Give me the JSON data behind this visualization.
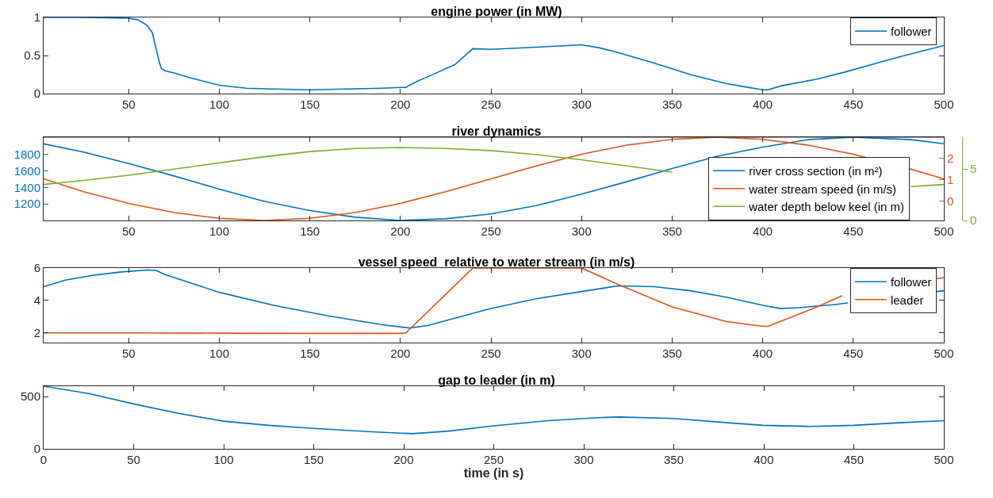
{
  "chart_data": [
    {
      "type": "line",
      "title": "engine power (in MW)",
      "xlim": [
        3,
        500
      ],
      "xticks": [
        50,
        100,
        150,
        200,
        250,
        300,
        350,
        400,
        450,
        500
      ],
      "ylim": [
        0,
        1
      ],
      "yticks": [
        0,
        0.5,
        1
      ],
      "grid": false,
      "legend": "top right",
      "line_style": "solid",
      "x": [
        3,
        25,
        50,
        55,
        60,
        63,
        65,
        67,
        68,
        70,
        75,
        85,
        100,
        115,
        130,
        150,
        170,
        190,
        200,
        203,
        205,
        210,
        215,
        230,
        240,
        250,
        275,
        300,
        310,
        320,
        340,
        360,
        380,
        390,
        400,
        403,
        410,
        430,
        445,
        460,
        475,
        490,
        500
      ],
      "series": [
        {
          "name": "follower",
          "color": "#0072bd",
          "values": [
            1,
            1,
            0.99,
            0.97,
            0.9,
            0.8,
            0.6,
            0.4,
            0.33,
            0.3,
            0.27,
            0.2,
            0.11,
            0.07,
            0.06,
            0.05,
            0.06,
            0.07,
            0.08,
            0.08,
            0.11,
            0.17,
            0.22,
            0.38,
            0.59,
            0.58,
            0.61,
            0.64,
            0.6,
            0.54,
            0.4,
            0.25,
            0.13,
            0.09,
            0.05,
            0.05,
            0.1,
            0.19,
            0.28,
            0.38,
            0.48,
            0.57,
            0.63
          ]
        }
      ]
    },
    {
      "type": "line",
      "title": "river dynamics",
      "xlim": [
        3,
        500
      ],
      "xticks": [
        50,
        100,
        150,
        200,
        250,
        300,
        350,
        400,
        450,
        500
      ],
      "ylim": [
        1000,
        2010
      ],
      "yticks": [
        1200,
        1400,
        1600,
        1800
      ],
      "y2lim": [
        -0.9,
        3
      ],
      "y2ticks": [
        0,
        1,
        2
      ],
      "y3lim": [
        0,
        8.1
      ],
      "y3ticks": [
        0,
        5
      ],
      "grid": false,
      "legend": "bottom right",
      "line_style": "solid",
      "x": [
        3,
        25,
        50,
        75,
        100,
        125,
        150,
        175,
        200,
        225,
        250,
        275,
        300,
        325,
        350,
        375,
        400,
        425,
        450,
        482,
        500
      ],
      "series": [
        {
          "name": "river cross section (in m²)",
          "color": "#0072bd",
          "axis": "y",
          "values": [
            1930,
            1830,
            1690,
            1540,
            1380,
            1230,
            1120,
            1040,
            1000,
            1020,
            1080,
            1180,
            1320,
            1470,
            1630,
            1780,
            1890,
            1980,
            2010,
            1980,
            1930
          ]
        },
        {
          "name": "water stream speed (in m/s)",
          "color": "#d95319",
          "axis": "y2",
          "values": [
            1.05,
            0.45,
            -0.1,
            -0.53,
            -0.8,
            -0.9,
            -0.8,
            -0.53,
            -0.1,
            0.45,
            1.05,
            1.65,
            2.2,
            2.63,
            2.9,
            3,
            2.9,
            2.63,
            2.2,
            1.5,
            1.05
          ]
        },
        {
          "name": "water depth below keel (in m)",
          "color": "#77ac30",
          "axis": "y3",
          "values": [
            3.5,
            3.9,
            4.4,
            5,
            5.6,
            6.2,
            6.7,
            7,
            7.1,
            7,
            6.8,
            6.4,
            5.9,
            5.3,
            4.7,
            null,
            null,
            null,
            null,
            3.3,
            3.5
          ]
        }
      ]
    },
    {
      "type": "line",
      "title": "vessel speed  relative to water stream (in m/s)",
      "xlim": [
        3,
        500
      ],
      "xticks": [
        50,
        100,
        150,
        200,
        250,
        300,
        350,
        400,
        450,
        500
      ],
      "ylim": [
        1.4,
        6
      ],
      "yticks": [
        2,
        4,
        6
      ],
      "grid": false,
      "legend": "top right",
      "line_style": "solid",
      "series": [
        {
          "name": "follower",
          "color": "#0072bd",
          "x": [
            3,
            15,
            30,
            45,
            60,
            65,
            70,
            100,
            130,
            160,
            190,
            205,
            215,
            230,
            250,
            275,
            300,
            320,
            340,
            360,
            380,
            400,
            410,
            420,
            440,
            447,
            480,
            496,
            500
          ],
          "values": [
            4.85,
            5.25,
            5.55,
            5.75,
            5.88,
            5.85,
            5.6,
            4.5,
            3.7,
            3.05,
            2.5,
            2.3,
            2.45,
            2.9,
            3.5,
            4.1,
            4.55,
            4.9,
            4.85,
            4.6,
            4.2,
            3.7,
            3.5,
            3.55,
            3.75,
            3.85,
            null,
            4.55,
            4.6
          ]
        },
        {
          "name": "leader",
          "color": "#d95319",
          "x": [
            3,
            50,
            100,
            150,
            200,
            203,
            240,
            300,
            320,
            350,
            380,
            400,
            403,
            430,
            444,
            470,
            496,
            500
          ],
          "values": [
            2.0,
            2.0,
            1.98,
            1.97,
            1.97,
            2.0,
            6,
            6,
            5.0,
            3.6,
            2.7,
            2.4,
            2.4,
            3.6,
            4.3,
            null,
            5.35,
            5.4
          ]
        }
      ]
    },
    {
      "type": "line",
      "title": "gap to leader (in m)",
      "xlabel": "time (in s)",
      "xlim": [
        0,
        500
      ],
      "xticks": [
        0,
        50,
        100,
        150,
        200,
        250,
        300,
        350,
        400,
        450,
        500
      ],
      "ylim": [
        0,
        600
      ],
      "yticks": [
        0,
        500
      ],
      "grid": false,
      "legend": false,
      "line_style": "solid",
      "x": [
        0,
        25,
        50,
        75,
        100,
        125,
        150,
        180,
        205,
        225,
        250,
        280,
        310,
        320,
        350,
        380,
        400,
        425,
        450,
        475,
        500
      ],
      "series": [
        {
          "color": "#0072bd",
          "values": [
            600,
            530,
            430,
            340,
            265,
            225,
            195,
            165,
            145,
            170,
            220,
            270,
            300,
            305,
            290,
            250,
            225,
            215,
            225,
            250,
            270
          ]
        }
      ]
    }
  ]
}
